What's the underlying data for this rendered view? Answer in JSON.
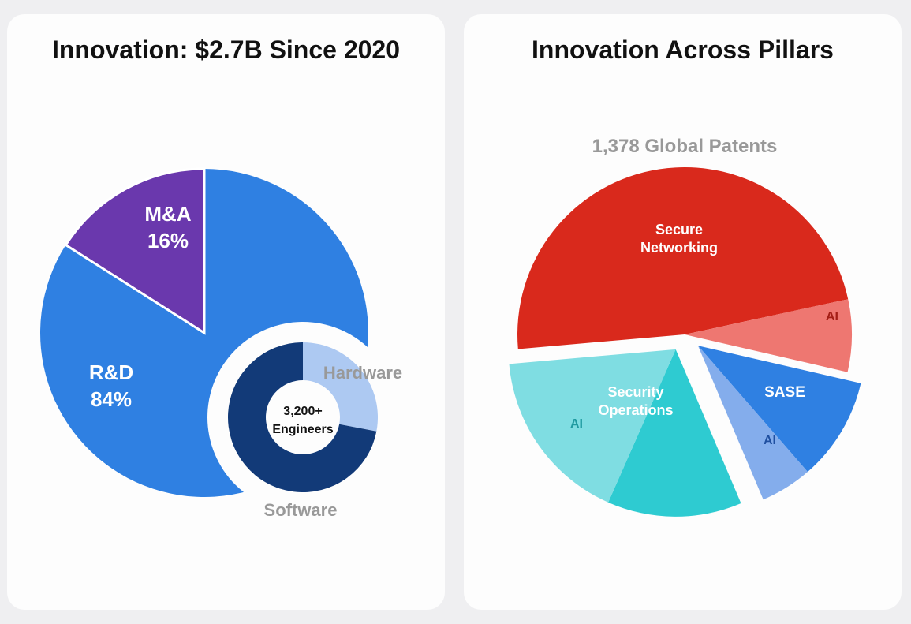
{
  "colors": {
    "rd": "#2f80e2",
    "ma": "#6a38ad",
    "software": "#123a78",
    "hardware": "#adc9f2",
    "secure_networking": "#d9291c",
    "secure_networking_ai": "#ee7771",
    "sase": "#2f80e2",
    "sase_ai": "#84adec",
    "security_operations": "#2ecbd1",
    "security_operations_ai": "#7fdde2",
    "label_grey": "#999999"
  },
  "chart_data": [
    {
      "type": "pie",
      "title": "Innovation: $2.7B Since 2020",
      "slices": [
        {
          "label": "R&D",
          "value_label": "84%",
          "value": 84
        },
        {
          "label": "M&A",
          "value_label": "16%",
          "value": 16
        }
      ],
      "inset": {
        "type": "donut",
        "center_text": "3,200+",
        "center_text_2": "Engineers",
        "slices": [
          {
            "label": "Hardware",
            "value": 28
          },
          {
            "label": "Software",
            "value": 72
          }
        ]
      }
    },
    {
      "type": "pie",
      "title": "Innovation Across Pillars",
      "subtitle": "1,378 Global Patents",
      "groups": [
        {
          "label": "Secure",
          "label2": "Networking",
          "ai_label": "AI",
          "main": 48,
          "ai": 7
        },
        {
          "label": "SASE",
          "label2": "",
          "ai_label": "AI",
          "main": 10,
          "ai": 5
        },
        {
          "label": "Security",
          "label2": "Operations",
          "ai_label": "AI",
          "main": 13,
          "ai": 17
        }
      ]
    }
  ]
}
